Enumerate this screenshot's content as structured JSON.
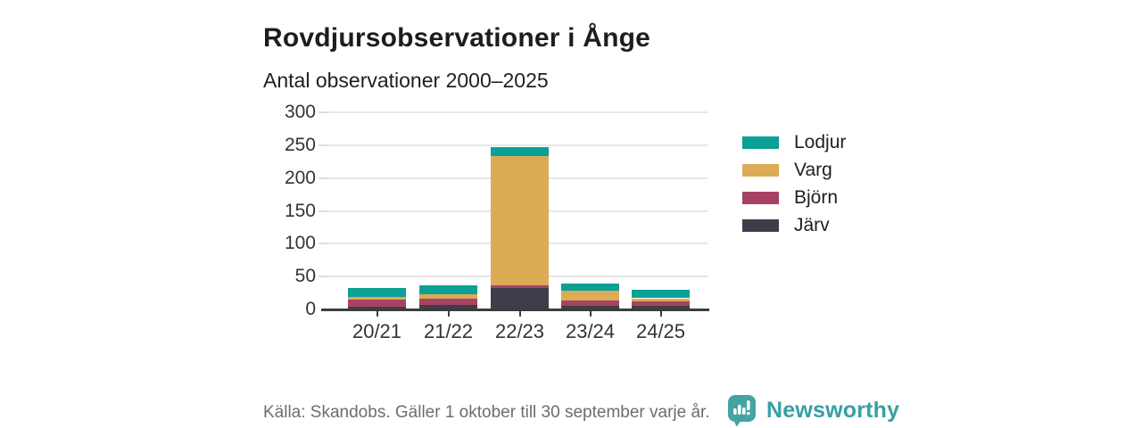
{
  "title": "Rovdjursobservationer i Ånge",
  "subtitle": "Antal observationer 2000–2025",
  "source": "Källa: Skandobs. Gäller 1 oktober till 30 september varje år.",
  "brand": {
    "name": "Newsworthy",
    "logo_icon": "bar-chart-speech-bubble-icon",
    "color": "#45a3a3",
    "text_color": "#35a0a2"
  },
  "colors": {
    "lodjur": "#0aa095",
    "varg": "#dbab55",
    "bjorn": "#a84265",
    "jarv": "#3f3d4a",
    "axis": "#3c3c3c",
    "gridline": "#e6e6e6",
    "tick_label": "#333333",
    "muted_text": "#6d6d6d"
  },
  "chart_data": {
    "type": "bar",
    "stacked": true,
    "title": "Rovdjursobservationer i Ånge",
    "subtitle": "Antal observationer 2000–2025",
    "categories": [
      "20/21",
      "21/22",
      "22/23",
      "23/24",
      "24/25"
    ],
    "series": [
      {
        "name": "Lodjur",
        "color": "#0aa095",
        "values": [
          14,
          14,
          13,
          11,
          13
        ]
      },
      {
        "name": "Varg",
        "color": "#dbab55",
        "values": [
          4,
          7,
          197,
          16,
          5
        ]
      },
      {
        "name": "Björn",
        "color": "#a84265",
        "values": [
          11,
          9,
          4,
          8,
          6
        ]
      },
      {
        "name": "Järv",
        "color": "#3f3d4a",
        "values": [
          4,
          7,
          33,
          5,
          6
        ]
      }
    ],
    "stack_order_bottom_to_top": [
      "Järv",
      "Björn",
      "Varg",
      "Lodjur"
    ],
    "totals": [
      33,
      37,
      247,
      40,
      30
    ],
    "xlabel": "",
    "ylabel": "",
    "y_ticks": [
      0,
      50,
      100,
      150,
      200,
      250,
      300
    ],
    "ylim": [
      0,
      300
    ],
    "grid": true,
    "legend_position": "right"
  }
}
